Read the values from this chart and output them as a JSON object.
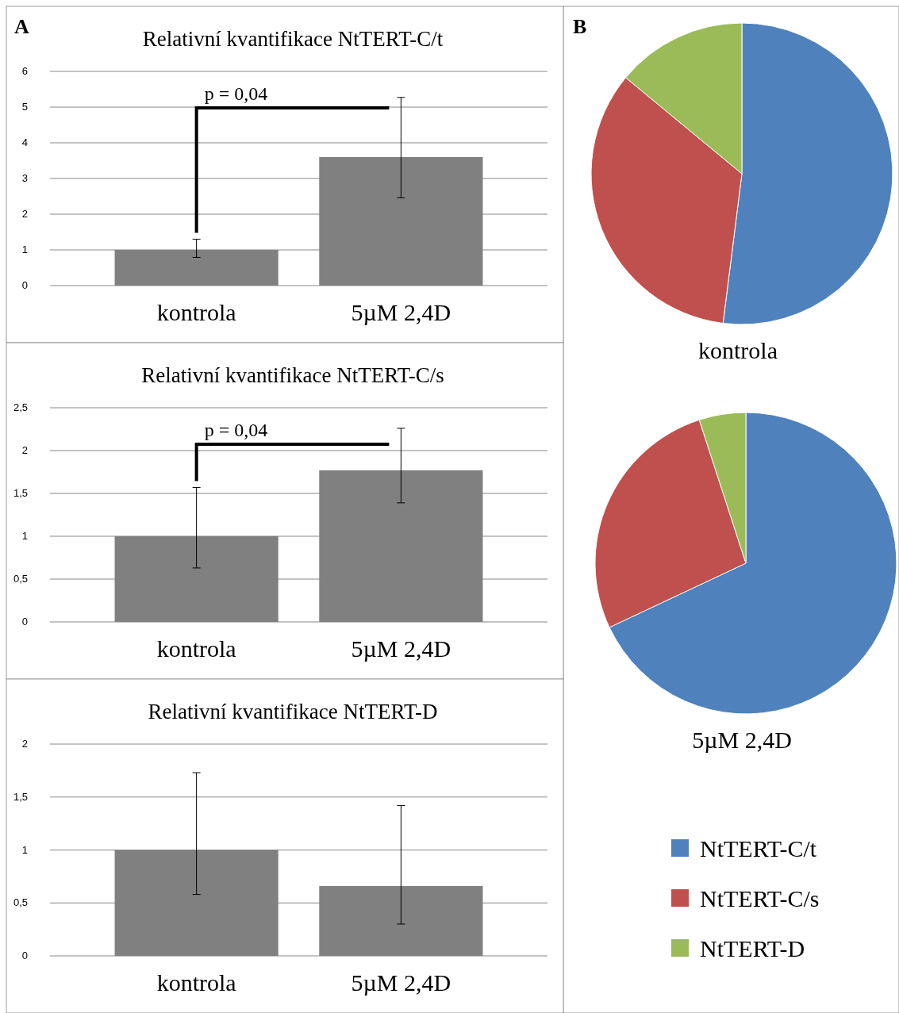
{
  "chart_data": [
    {
      "type": "bar",
      "title": "Relativní kvantifikace NtTERT-C/t",
      "categories": [
        "kontrola",
        "5µM 2,4D"
      ],
      "values": [
        1.0,
        3.6
      ],
      "errors": [
        [
          0.79,
          1.3
        ],
        [
          2.46,
          5.27
        ]
      ],
      "color": "#808080",
      "ylim": [
        0,
        6
      ],
      "yticks": [
        0,
        1,
        2,
        3,
        4,
        5,
        6
      ],
      "grid": "y",
      "annotations": [
        "A",
        "p = 0,04"
      ]
    },
    {
      "type": "bar",
      "title": "Relativní kvantifikace NtTERT-C/s",
      "categories": [
        "kontrola",
        "5µM 2,4D"
      ],
      "values": [
        1.0,
        1.77
      ],
      "errors": [
        [
          0.63,
          1.57
        ],
        [
          1.39,
          2.26
        ]
      ],
      "color": "#808080",
      "ylim": [
        0,
        2.5
      ],
      "yticks": [
        0,
        {
          "value": 0.5,
          "label": "0,5"
        },
        1,
        {
          "value": 1.5,
          "label": "1,5"
        },
        2,
        {
          "value": 2.5,
          "label": "2,5"
        }
      ],
      "grid": "y",
      "annotations": [
        "p = 0,04"
      ]
    },
    {
      "type": "bar",
      "title": "Relativní kvantifikace NtTERT-D",
      "categories": [
        "kontrola",
        "5µM 2,4D"
      ],
      "values": [
        1.0,
        0.66
      ],
      "errors": [
        [
          0.58,
          1.73
        ],
        [
          0.3,
          1.42
        ]
      ],
      "color": "#808080",
      "ylim": [
        0,
        2
      ],
      "yticks": [
        0,
        {
          "value": 0.5,
          "label": "0,5"
        },
        1,
        {
          "value": 1.5,
          "label": "1,5"
        },
        2
      ],
      "grid": "y"
    },
    {
      "type": "pie",
      "title": "kontrola",
      "categories": [
        null,
        null,
        null
      ],
      "values": [
        52,
        34,
        14
      ],
      "colors": [
        "#4f81bd",
        "#c0504d",
        "#9bbb59"
      ],
      "annotations": [
        "B"
      ]
    },
    {
      "type": "pie",
      "title": "5µM 2,4D",
      "categories": [
        "NtTERT-C/t",
        "NtTERT-C/s",
        "NtTERT-D"
      ],
      "values": [
        68,
        27,
        5
      ],
      "colors": [
        "#4f81bd",
        "#c0504d",
        "#9bbb59"
      ],
      "legend": "bottom"
    }
  ]
}
